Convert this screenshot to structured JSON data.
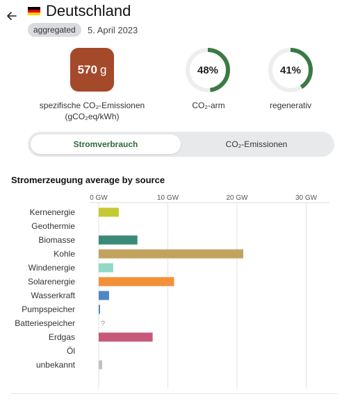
{
  "header": {
    "title": "Deutschland",
    "badge": "aggregated",
    "date": "5. April 2023",
    "flag_colors": [
      "#000000",
      "#dd0000",
      "#ffce00"
    ]
  },
  "kpis": {
    "intensity": {
      "value": "570",
      "unit": "g",
      "label_line1": "spezifische CO₂-Emissionen",
      "label_line2": "(gCO₂eq/kWh)",
      "color": "#a4492a"
    },
    "low_carbon": {
      "value_text": "48%",
      "fraction": 0.48,
      "label": "CO₂-arm",
      "color": "#3b7a45"
    },
    "renewable": {
      "value_text": "41%",
      "fraction": 0.41,
      "label": "regenerativ",
      "color": "#3b7a45"
    }
  },
  "toggle": {
    "options": [
      "Stromverbrauch",
      "CO₂-Emissionen"
    ],
    "selected": "Stromverbrauch"
  },
  "chart_title": "Stromerzeugung average by source",
  "chart_data": {
    "type": "bar",
    "orientation": "horizontal",
    "categories": [
      "Kernenergie",
      "Geothermie",
      "Biomasse",
      "Kohle",
      "Windenergie",
      "Solarenergie",
      "Wasserkraft",
      "Pumpspeicher",
      "Batteriespeicher",
      "Erdgas",
      "Öl",
      "unbekannt"
    ],
    "values": [
      2.9,
      0,
      5.6,
      20.9,
      2.1,
      10.9,
      1.5,
      0.2,
      null,
      7.8,
      0,
      0.5
    ],
    "colors": [
      "#c5c934",
      "#ffffff",
      "#3b8a77",
      "#c3a25f",
      "#91d9c6",
      "#f3913a",
      "#4d88c4",
      "#4d88c4",
      "#999999",
      "#c75878",
      "#ffffff",
      "#c2c2c2"
    ],
    "missing_marker": "?",
    "xticks": [
      0,
      10,
      20,
      30
    ],
    "xtick_labels": [
      "0 GW",
      "10 GW",
      "20 GW",
      "30 GW"
    ],
    "xlim": [
      0,
      30
    ],
    "grid": true
  }
}
